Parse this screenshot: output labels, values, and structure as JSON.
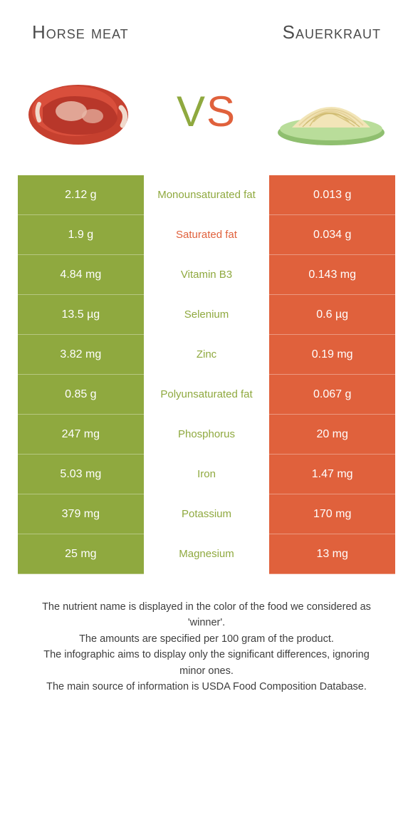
{
  "colors": {
    "left_bg": "#8fa93f",
    "right_bg": "#e0613c",
    "mid_bg": "#ffffff",
    "title_color": "#4b4b4b",
    "cell_text": "#ffffff",
    "footer_text": "#3d3d3d"
  },
  "header": {
    "left_title": "Horse meat",
    "right_title": "Sauerkraut"
  },
  "vs": {
    "v": "V",
    "s": "S"
  },
  "rows": [
    {
      "left": "2.12 g",
      "label": "Monounsaturated fat",
      "right": "0.013 g",
      "winner": "left"
    },
    {
      "left": "1.9 g",
      "label": "Saturated fat",
      "right": "0.034 g",
      "winner": "right"
    },
    {
      "left": "4.84 mg",
      "label": "Vitamin B3",
      "right": "0.143 mg",
      "winner": "left"
    },
    {
      "left": "13.5 µg",
      "label": "Selenium",
      "right": "0.6 µg",
      "winner": "left"
    },
    {
      "left": "3.82 mg",
      "label": "Zinc",
      "right": "0.19 mg",
      "winner": "left"
    },
    {
      "left": "0.85 g",
      "label": "Polyunsaturated fat",
      "right": "0.067 g",
      "winner": "left"
    },
    {
      "left": "247 mg",
      "label": "Phosphorus",
      "right": "20 mg",
      "winner": "left"
    },
    {
      "left": "5.03 mg",
      "label": "Iron",
      "right": "1.47 mg",
      "winner": "left"
    },
    {
      "left": "379 mg",
      "label": "Potassium",
      "right": "170 mg",
      "winner": "left"
    },
    {
      "left": "25 mg",
      "label": "Magnesium",
      "right": "13 mg",
      "winner": "left"
    }
  ],
  "footer": {
    "line1": "The nutrient name is displayed in the color of the food we considered as 'winner'.",
    "line2": "The amounts are specified per 100 gram of the product.",
    "line3": "The infographic aims to display only the significant differences, ignoring minor ones.",
    "line4": "The main source of information is USDA Food Composition Database."
  }
}
